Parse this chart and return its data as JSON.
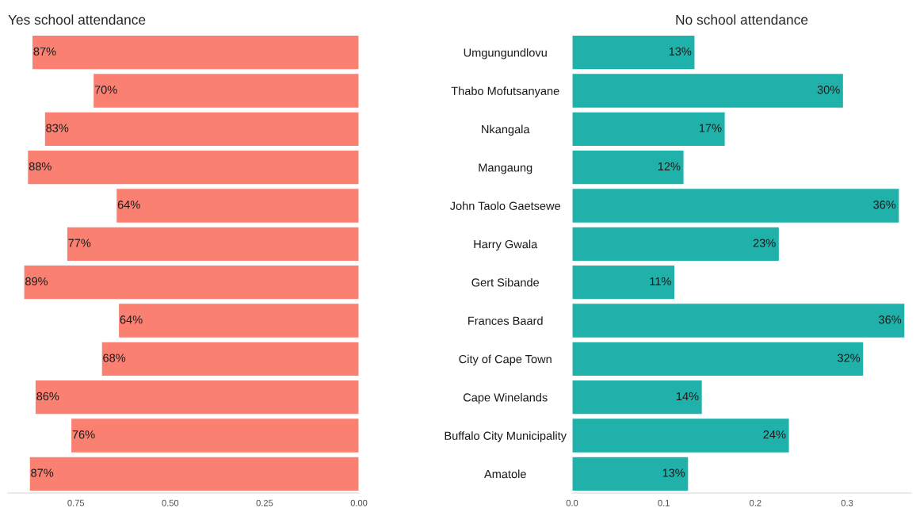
{
  "chart_data": [
    {
      "type": "bar",
      "orientation": "horizontal",
      "title": "Yes school attendance",
      "categories": [
        "Umgungundlovu",
        "Thabo Mofutsanyane",
        "Nkangala",
        "Mangaung",
        "John Taolo Gaetsewe",
        "Harry Gwala",
        "Gert Sibande",
        "Frances Baard",
        "City of Cape Town",
        "Cape Winelands",
        "Buffalo City Municipality",
        "Amatole"
      ],
      "values": [
        0.866,
        0.704,
        0.833,
        0.878,
        0.643,
        0.774,
        0.888,
        0.637,
        0.682,
        0.858,
        0.763,
        0.873
      ],
      "value_labels": [
        "87%",
        "70%",
        "83%",
        "88%",
        "64%",
        "77%",
        "89%",
        "64%",
        "68%",
        "86%",
        "76%",
        "87%"
      ],
      "color": "#fa8072",
      "xlim": [
        0.93,
        0.0
      ],
      "xticks": [
        {
          "value": 0.75,
          "label": "0.75"
        },
        {
          "value": 0.5,
          "label": "0.50"
        },
        {
          "value": 0.25,
          "label": "0.25"
        },
        {
          "value": 0.0,
          "label": "0.00"
        }
      ],
      "grid": false
    },
    {
      "type": "bar",
      "orientation": "horizontal",
      "title": "No school attendance",
      "categories": [
        null,
        null,
        null,
        null,
        null,
        null,
        null,
        null,
        null,
        null,
        null,
        null
      ],
      "values": [
        0.134,
        0.296,
        0.167,
        0.122,
        0.357,
        0.226,
        0.112,
        0.363,
        0.318,
        0.142,
        0.237,
        0.127
      ],
      "value_labels": [
        "13%",
        "30%",
        "17%",
        "12%",
        "36%",
        "23%",
        "11%",
        "36%",
        "32%",
        "14%",
        "24%",
        "13%"
      ],
      "color": "#20b2aa",
      "xlim": [
        0.0,
        0.37
      ],
      "xticks": [
        {
          "value": 0.0,
          "label": "0.0"
        },
        {
          "value": 0.1,
          "label": "0.1"
        },
        {
          "value": 0.2,
          "label": "0.2"
        },
        {
          "value": 0.3,
          "label": "0.3"
        }
      ],
      "tick_labels": "x",
      "grid": false
    }
  ]
}
